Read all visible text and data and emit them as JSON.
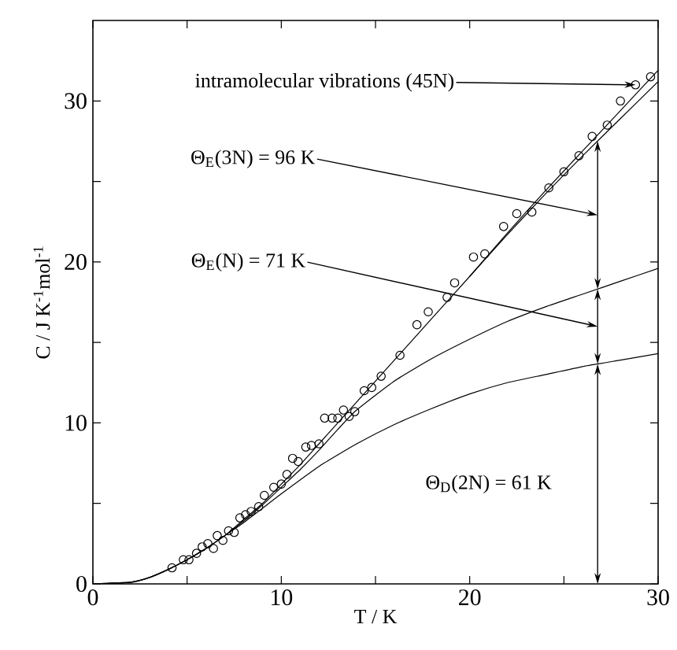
{
  "chart_data": {
    "type": "line",
    "xlabel": "T / K",
    "ylabel": "C / J K$^{-1}$mol$^{-1}$",
    "xlim": [
      0,
      30
    ],
    "ylim": [
      0,
      35
    ],
    "xticks": [
      0,
      {
        "value": 5,
        "label": null
      },
      10,
      {
        "value": 15,
        "label": null
      },
      20,
      {
        "value": 25,
        "label": null
      },
      30
    ],
    "yticks": [
      0,
      {
        "value": 5,
        "label": null
      },
      10,
      {
        "value": 15,
        "label": null
      },
      20,
      {
        "value": 25,
        "label": null
      },
      30
    ],
    "grid": false,
    "series": [
      {
        "type": "scatter",
        "marker": "circle",
        "color": "#000000",
        "x": [
          4.2,
          4.8,
          5.1,
          5.5,
          5.8,
          6.1,
          6.4,
          6.6,
          6.9,
          7.2,
          7.5,
          7.8,
          8.1,
          8.4,
          8.8,
          9.1,
          9.6,
          10.0,
          10.3,
          10.6,
          10.9,
          11.3,
          11.6,
          12.0,
          12.3,
          12.7,
          13.0,
          13.3,
          13.6,
          13.9,
          14.4,
          14.8,
          15.3,
          16.3,
          17.2,
          17.8,
          18.8,
          19.2,
          20.2,
          20.8,
          21.8,
          22.5,
          23.3,
          24.2,
          25.0,
          25.8,
          26.5,
          27.3,
          28.0,
          28.8,
          29.6
        ],
        "values": [
          1.0,
          1.5,
          1.5,
          1.9,
          2.3,
          2.5,
          2.2,
          3.0,
          2.7,
          3.3,
          3.2,
          4.1,
          4.3,
          4.5,
          4.8,
          5.5,
          6.0,
          6.2,
          6.8,
          7.8,
          7.6,
          8.5,
          8.6,
          8.7,
          10.3,
          10.3,
          10.3,
          10.8,
          10.4,
          10.7,
          12.0,
          12.2,
          12.9,
          14.2,
          16.1,
          16.9,
          17.8,
          18.7,
          20.3,
          20.5,
          22.2,
          23.0,
          23.1,
          24.6,
          25.6,
          26.6,
          27.8,
          28.5,
          30.0,
          31.0,
          31.5
        ]
      },
      {
        "color": "#000000",
        "x": [
          0,
          2,
          3,
          4,
          5,
          6,
          7,
          8,
          9,
          10,
          12,
          14,
          16,
          18,
          20,
          22,
          24,
          26,
          28,
          30
        ],
        "values": [
          0,
          0.1,
          0.4,
          0.9,
          1.5,
          2.2,
          3.0,
          3.8,
          4.7,
          5.6,
          7.3,
          8.7,
          9.9,
          10.9,
          11.8,
          12.5,
          13.0,
          13.5,
          13.9,
          14.3
        ]
      },
      {
        "color": "#000000",
        "x": [
          0,
          2,
          3,
          4,
          5,
          6,
          7,
          8,
          9,
          10,
          11,
          12,
          13,
          14,
          16,
          18,
          20,
          22,
          24,
          26,
          28,
          30
        ],
        "values": [
          0,
          0.1,
          0.4,
          0.9,
          1.5,
          2.2,
          3.0,
          3.9,
          4.9,
          6.0,
          7.1,
          8.3,
          9.6,
          10.8,
          12.6,
          14.0,
          15.2,
          16.3,
          17.2,
          18.0,
          18.8,
          19.6
        ]
      },
      {
        "color": "#000000",
        "x": [
          0,
          2,
          3,
          4,
          5,
          6,
          7,
          8,
          9,
          10,
          11,
          12,
          13,
          14,
          16,
          18,
          20,
          22,
          24,
          26,
          28,
          30
        ],
        "values": [
          0,
          0.1,
          0.4,
          0.9,
          1.5,
          2.2,
          3.0,
          4.0,
          5.0,
          6.2,
          7.4,
          8.7,
          10.0,
          11.3,
          13.9,
          16.5,
          19.1,
          21.7,
          24.2,
          26.6,
          28.9,
          31.2
        ]
      },
      {
        "color": "#000000",
        "x": [
          20,
          22,
          24,
          26,
          28,
          30
        ],
        "values": [
          19.1,
          21.8,
          24.4,
          26.9,
          29.4,
          31.9
        ]
      }
    ],
    "annotations": [
      {
        "text": "intramolecular vibrations (45N)",
        "x": 28.8,
        "y": 31.0
      },
      "Θ$_{E}$(3N) = 96 K",
      "Θ$_{E}$(N) = 71 K",
      "Θ$_{D}$(2N) = 61 K"
    ]
  }
}
